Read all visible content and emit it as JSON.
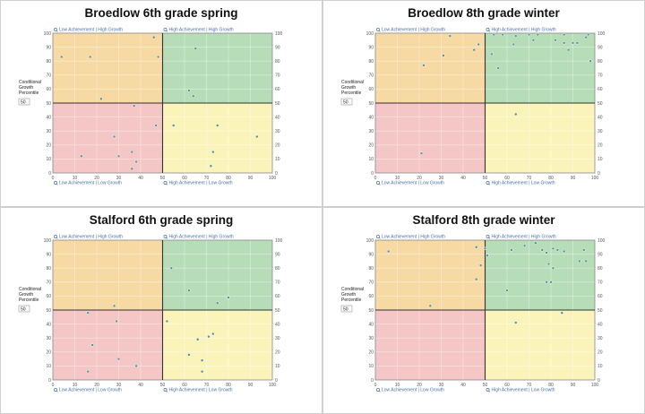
{
  "side_label_lines": [
    "Conditional",
    "Growth",
    "Percentile"
  ],
  "side_input_value": "50",
  "quadrant_labels": {
    "top_left": "Low Achievement | High Growth",
    "top_right": "High Achievement | High Growth",
    "bottom_left": "Low Achievement | Low Growth",
    "bottom_right": "High Achievement | Low Growth"
  },
  "quadrant_colors": {
    "top_left": "#f7d9a3",
    "top_right": "#b6dcb8",
    "bottom_left": "#f4c6c6",
    "bottom_right": "#fbf4ba"
  },
  "point_color": "#5a8f8f",
  "chart_data": [
    {
      "type": "scatter",
      "title": "Broedlow 6th grade spring",
      "xlim": [
        0,
        100
      ],
      "ylim": [
        0,
        100
      ],
      "xticks": [
        0,
        10,
        20,
        30,
        40,
        50,
        60,
        70,
        80,
        90,
        100
      ],
      "yticks": [
        0,
        10,
        20,
        30,
        40,
        50,
        60,
        70,
        80,
        90,
        100
      ],
      "grid": true,
      "x_divider": 50,
      "y_divider": 50,
      "points": [
        [
          4,
          83
        ],
        [
          17,
          83
        ],
        [
          22,
          53
        ],
        [
          46,
          97
        ],
        [
          48,
          83
        ],
        [
          65,
          89
        ],
        [
          62,
          59
        ],
        [
          64,
          55
        ],
        [
          37,
          48
        ],
        [
          28,
          26
        ],
        [
          47,
          34
        ],
        [
          55,
          34
        ],
        [
          13,
          12
        ],
        [
          30,
          12
        ],
        [
          36,
          15
        ],
        [
          38,
          8
        ],
        [
          36,
          3
        ],
        [
          75,
          34
        ],
        [
          73,
          15
        ],
        [
          72,
          5
        ],
        [
          93,
          26
        ]
      ]
    },
    {
      "type": "scatter",
      "title": "Broedlow 8th grade winter",
      "xlim": [
        0,
        100
      ],
      "ylim": [
        0,
        100
      ],
      "xticks": [
        0,
        10,
        20,
        30,
        40,
        50,
        60,
        70,
        80,
        90,
        100
      ],
      "yticks": [
        0,
        10,
        20,
        30,
        40,
        50,
        60,
        70,
        80,
        90,
        100
      ],
      "grid": true,
      "x_divider": 50,
      "y_divider": 50,
      "points": [
        [
          22,
          77
        ],
        [
          34,
          98
        ],
        [
          31,
          84
        ],
        [
          45,
          88
        ],
        [
          47,
          92
        ],
        [
          54,
          99
        ],
        [
          58,
          99
        ],
        [
          64,
          98
        ],
        [
          70,
          99
        ],
        [
          74,
          99
        ],
        [
          53,
          85
        ],
        [
          56,
          75
        ],
        [
          63,
          92
        ],
        [
          72,
          95
        ],
        [
          82,
          95
        ],
        [
          86,
          99
        ],
        [
          86,
          93
        ],
        [
          88,
          88
        ],
        [
          90,
          93
        ],
        [
          92,
          93
        ],
        [
          97,
          99
        ],
        [
          96,
          97
        ],
        [
          98,
          80
        ],
        [
          21,
          14
        ],
        [
          64,
          42
        ]
      ]
    },
    {
      "type": "scatter",
      "title": "Stalford 6th grade spring",
      "xlim": [
        0,
        100
      ],
      "ylim": [
        0,
        100
      ],
      "xticks": [
        0,
        10,
        20,
        30,
        40,
        50,
        60,
        70,
        80,
        90,
        100
      ],
      "yticks": [
        0,
        10,
        20,
        30,
        40,
        50,
        60,
        70,
        80,
        90,
        100
      ],
      "grid": true,
      "x_divider": 50,
      "y_divider": 50,
      "points": [
        [
          28,
          53
        ],
        [
          16,
          48
        ],
        [
          29,
          42
        ],
        [
          18,
          25
        ],
        [
          30,
          15
        ],
        [
          38,
          10
        ],
        [
          16,
          6
        ],
        [
          54,
          80
        ],
        [
          62,
          64
        ],
        [
          75,
          55
        ],
        [
          80,
          59
        ],
        [
          52,
          42
        ],
        [
          73,
          33
        ],
        [
          71,
          31
        ],
        [
          66,
          29
        ],
        [
          62,
          18
        ],
        [
          68,
          14
        ],
        [
          68,
          6
        ]
      ]
    },
    {
      "type": "scatter",
      "title": "Stalford 8th grade winter",
      "xlim": [
        0,
        100
      ],
      "ylim": [
        0,
        100
      ],
      "xticks": [
        0,
        10,
        20,
        30,
        40,
        50,
        60,
        70,
        80,
        90,
        100
      ],
      "yticks": [
        0,
        10,
        20,
        30,
        40,
        50,
        60,
        70,
        80,
        90,
        100
      ],
      "grid": true,
      "x_divider": 50,
      "y_divider": 50,
      "points": [
        [
          6,
          92
        ],
        [
          46,
          95
        ],
        [
          48,
          82
        ],
        [
          46,
          72
        ],
        [
          51,
          89
        ],
        [
          50,
          94
        ],
        [
          25,
          53
        ],
        [
          62,
          93
        ],
        [
          68,
          96
        ],
        [
          73,
          98
        ],
        [
          76,
          93
        ],
        [
          78,
          91
        ],
        [
          81,
          94
        ],
        [
          83,
          93
        ],
        [
          86,
          92
        ],
        [
          79,
          83
        ],
        [
          81,
          80
        ],
        [
          78,
          70
        ],
        [
          80,
          70
        ],
        [
          93,
          85
        ],
        [
          95,
          93
        ],
        [
          96,
          85
        ],
        [
          60,
          64
        ],
        [
          64,
          41
        ],
        [
          85,
          48
        ]
      ]
    }
  ]
}
